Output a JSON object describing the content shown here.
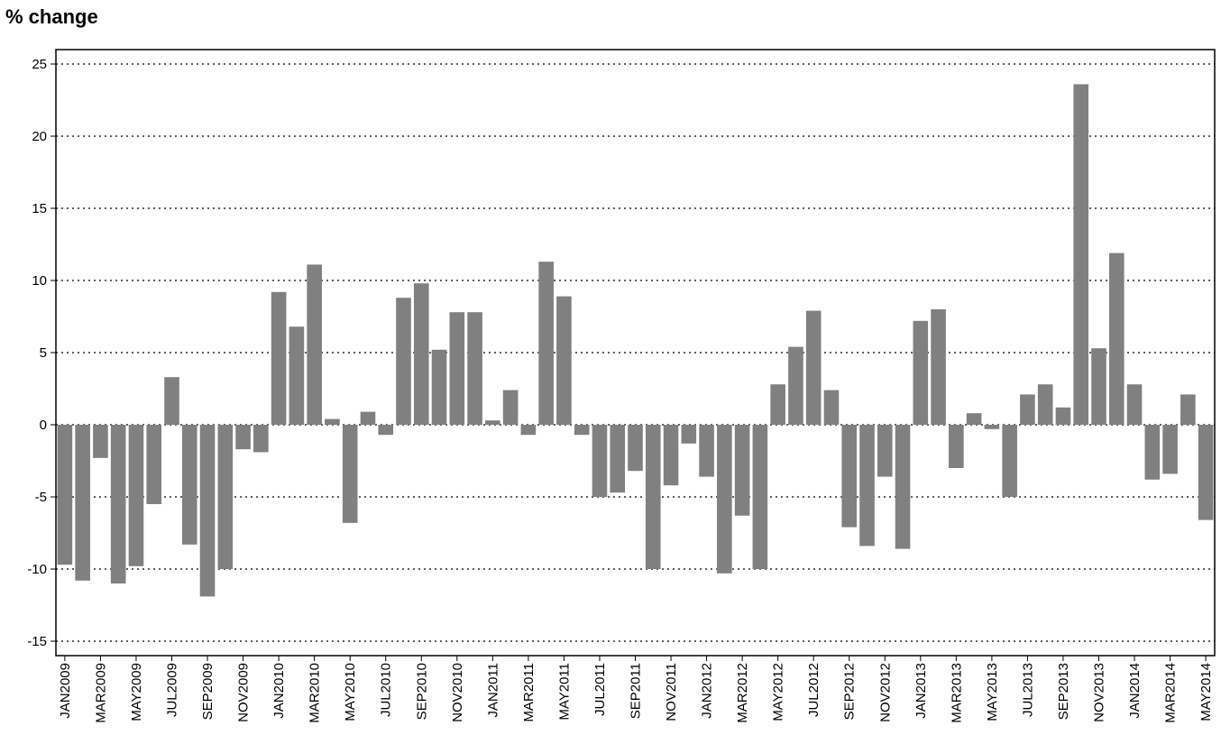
{
  "chart_data": {
    "type": "bar",
    "title": "",
    "ylabel": "% change",
    "xlabel": "",
    "ylim": [
      -16,
      26
    ],
    "yticks": [
      -15,
      -10,
      -5,
      0,
      5,
      10,
      15,
      20,
      25
    ],
    "grid": "horizontal dotted",
    "legend": "none",
    "bar_color": "#808080",
    "categories": [
      "JAN2009",
      "FEB2009",
      "MAR2009",
      "APR2009",
      "MAY2009",
      "JUN2009",
      "JUL2009",
      "AUG2009",
      "SEP2009",
      "OCT2009",
      "NOV2009",
      "DEC2009",
      "JAN2010",
      "FEB2010",
      "MAR2010",
      "APR2010",
      "MAY2010",
      "JUN2010",
      "JUL2010",
      "AUG2010",
      "SEP2010",
      "OCT2010",
      "NOV2010",
      "DEC2010",
      "JAN2011",
      "FEB2011",
      "MAR2011",
      "APR2011",
      "MAY2011",
      "JUN2011",
      "JUL2011",
      "AUG2011",
      "SEP2011",
      "OCT2011",
      "NOV2011",
      "DEC2011",
      "JAN2012",
      "FEB2012",
      "MAR2012",
      "APR2012",
      "MAY2012",
      "JUN2012",
      "JUL2012",
      "AUG2012",
      "SEP2012",
      "OCT2012",
      "NOV2012",
      "DEC2012",
      "JAN2013",
      "FEB2013",
      "MAR2013",
      "APR2013",
      "MAY2013",
      "JUN2013",
      "JUL2013",
      "AUG2013",
      "SEP2013",
      "OCT2013",
      "NOV2013",
      "DEC2013",
      "JAN2014",
      "FEB2014",
      "MAR2014",
      "APR2014",
      "MAY2014"
    ],
    "tick_labels": [
      "JAN2009",
      "MAR2009",
      "MAY2009",
      "JUL2009",
      "SEP2009",
      "NOV2009",
      "JAN2010",
      "MAR2010",
      "MAY2010",
      "JUL2010",
      "SEP2010",
      "NOV2010",
      "JAN2011",
      "MAR2011",
      "MAY2011",
      "JUL2011",
      "SEP2011",
      "NOV2011",
      "JAN2012",
      "MAR2012",
      "MAY2012",
      "JUL2012",
      "SEP2012",
      "NOV2012",
      "JAN2013",
      "MAR2013",
      "MAY2013",
      "JUL2013",
      "SEP2013",
      "NOV2013",
      "JAN2014",
      "MAR2014",
      "MAY2014"
    ],
    "values": [
      -9.7,
      -10.8,
      -2.3,
      -11.0,
      -9.8,
      -5.5,
      3.3,
      -8.3,
      -11.9,
      -10.0,
      -1.7,
      -1.9,
      9.2,
      6.8,
      11.1,
      0.4,
      -6.8,
      0.9,
      -0.7,
      8.8,
      9.8,
      5.2,
      7.8,
      7.8,
      0.3,
      2.4,
      -0.7,
      11.3,
      8.9,
      -0.7,
      -5.0,
      -4.7,
      -3.2,
      -10.0,
      -4.2,
      -1.3,
      -3.6,
      -10.3,
      -6.3,
      -10.0,
      2.8,
      5.4,
      7.9,
      2.4,
      -7.1,
      -8.4,
      -3.6,
      -8.6,
      7.2,
      8.0,
      -3.0,
      0.8,
      -0.3,
      -5.0,
      2.1,
      2.8,
      1.2,
      23.6,
      5.3,
      11.9,
      2.8,
      -3.8,
      -3.4,
      2.1,
      -6.6
    ]
  }
}
